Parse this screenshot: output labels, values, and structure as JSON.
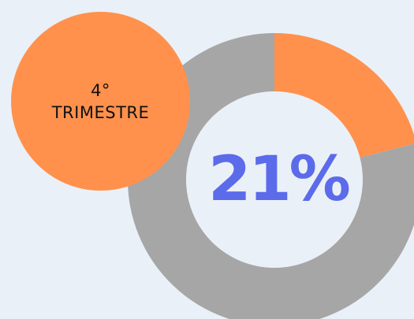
{
  "chart_data": {
    "type": "pie",
    "donut": true,
    "slices": [
      {
        "label": "4° TRIMESTRE",
        "value": 21,
        "color": "#FF914D"
      },
      {
        "label": "",
        "value": 79,
        "color": "#A6A6A6"
      }
    ],
    "center_label": "21%"
  },
  "badge": {
    "line1": "4°",
    "line2": "TRIMESTRE",
    "color": "#FF914D"
  },
  "colors": {
    "background": "#EAF0F7",
    "accent": "#FF914D",
    "remainder": "#A6A6A6",
    "value_text": "#5B6BEA"
  }
}
